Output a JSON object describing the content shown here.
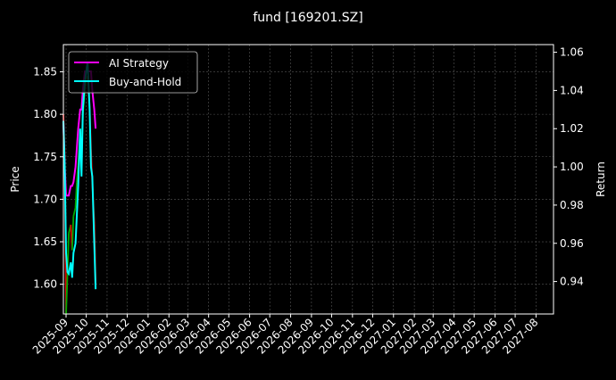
{
  "chart_data": {
    "type": "line",
    "title": "fund [169201.SZ]",
    "ylabel_left": "Price",
    "ylabel_right": "Return",
    "xlim": [
      "2025-08-28",
      "2027-08-27"
    ],
    "ylim_left": [
      1.565,
      1.882
    ],
    "ylim_right": [
      0.923,
      1.064
    ],
    "grid": true,
    "legend_placement": "top-left",
    "x_ticks": [
      "2025-09",
      "2025-10",
      "2025-11",
      "2025-12",
      "2026-01",
      "2026-02",
      "2026-03",
      "2026-04",
      "2026-05",
      "2026-06",
      "2026-07",
      "2026-08",
      "2026-09",
      "2026-10",
      "2026-11",
      "2026-12",
      "2027-01",
      "2027-02",
      "2027-03",
      "2027-04",
      "2027-05",
      "2027-06",
      "2027-07",
      "2027-08"
    ],
    "y_ticks_left": [
      1.6,
      1.65,
      1.7,
      1.75,
      1.8,
      1.85
    ],
    "y_ticks_right": [
      0.94,
      0.96,
      0.98,
      1.0,
      1.02,
      1.04,
      1.06
    ],
    "x": [
      "2025-08-28",
      "2025-08-30",
      "2025-09-01",
      "2025-09-03",
      "2025-09-05",
      "2025-09-08",
      "2025-09-10",
      "2025-09-12",
      "2025-09-15",
      "2025-09-17",
      "2025-09-19",
      "2025-09-22",
      "2025-09-24",
      "2025-09-26",
      "2025-09-29",
      "2025-10-01",
      "2025-10-03",
      "2025-10-06",
      "2025-10-08",
      "2025-10-10",
      "2025-10-13",
      "2025-10-15"
    ],
    "price": [
      1.8,
      1.75,
      1.565,
      1.61,
      1.66,
      1.67,
      1.64,
      1.68,
      1.69,
      1.72,
      1.74,
      1.78,
      1.75,
      1.8,
      1.83,
      1.84,
      1.845,
      1.81,
      1.76,
      1.72,
      1.67,
      1.6
    ],
    "series": [
      {
        "name": "AI Strategy",
        "color": "#ff00ff",
        "axis": "right",
        "values": [
          1.024,
          1.0,
          0.985,
          0.985,
          0.985,
          0.99,
          0.99,
          0.992,
          1.0,
          1.01,
          1.02,
          1.03,
          1.03,
          1.04,
          1.05,
          1.05,
          1.05,
          1.05,
          1.05,
          1.04,
          1.03,
          1.02
        ]
      },
      {
        "name": "Buy-and-Hold",
        "color": "#00ffff",
        "axis": "right",
        "values": [
          1.024,
          1.0,
          0.955,
          0.945,
          0.944,
          0.95,
          0.942,
          0.955,
          0.96,
          0.975,
          0.99,
          1.02,
          0.995,
          1.03,
          1.045,
          1.05,
          1.055,
          1.03,
          1.0,
          0.995,
          0.96,
          0.936
        ]
      }
    ],
    "price_colors": {
      "up": "#00aa00",
      "down": "#dd0000"
    }
  }
}
